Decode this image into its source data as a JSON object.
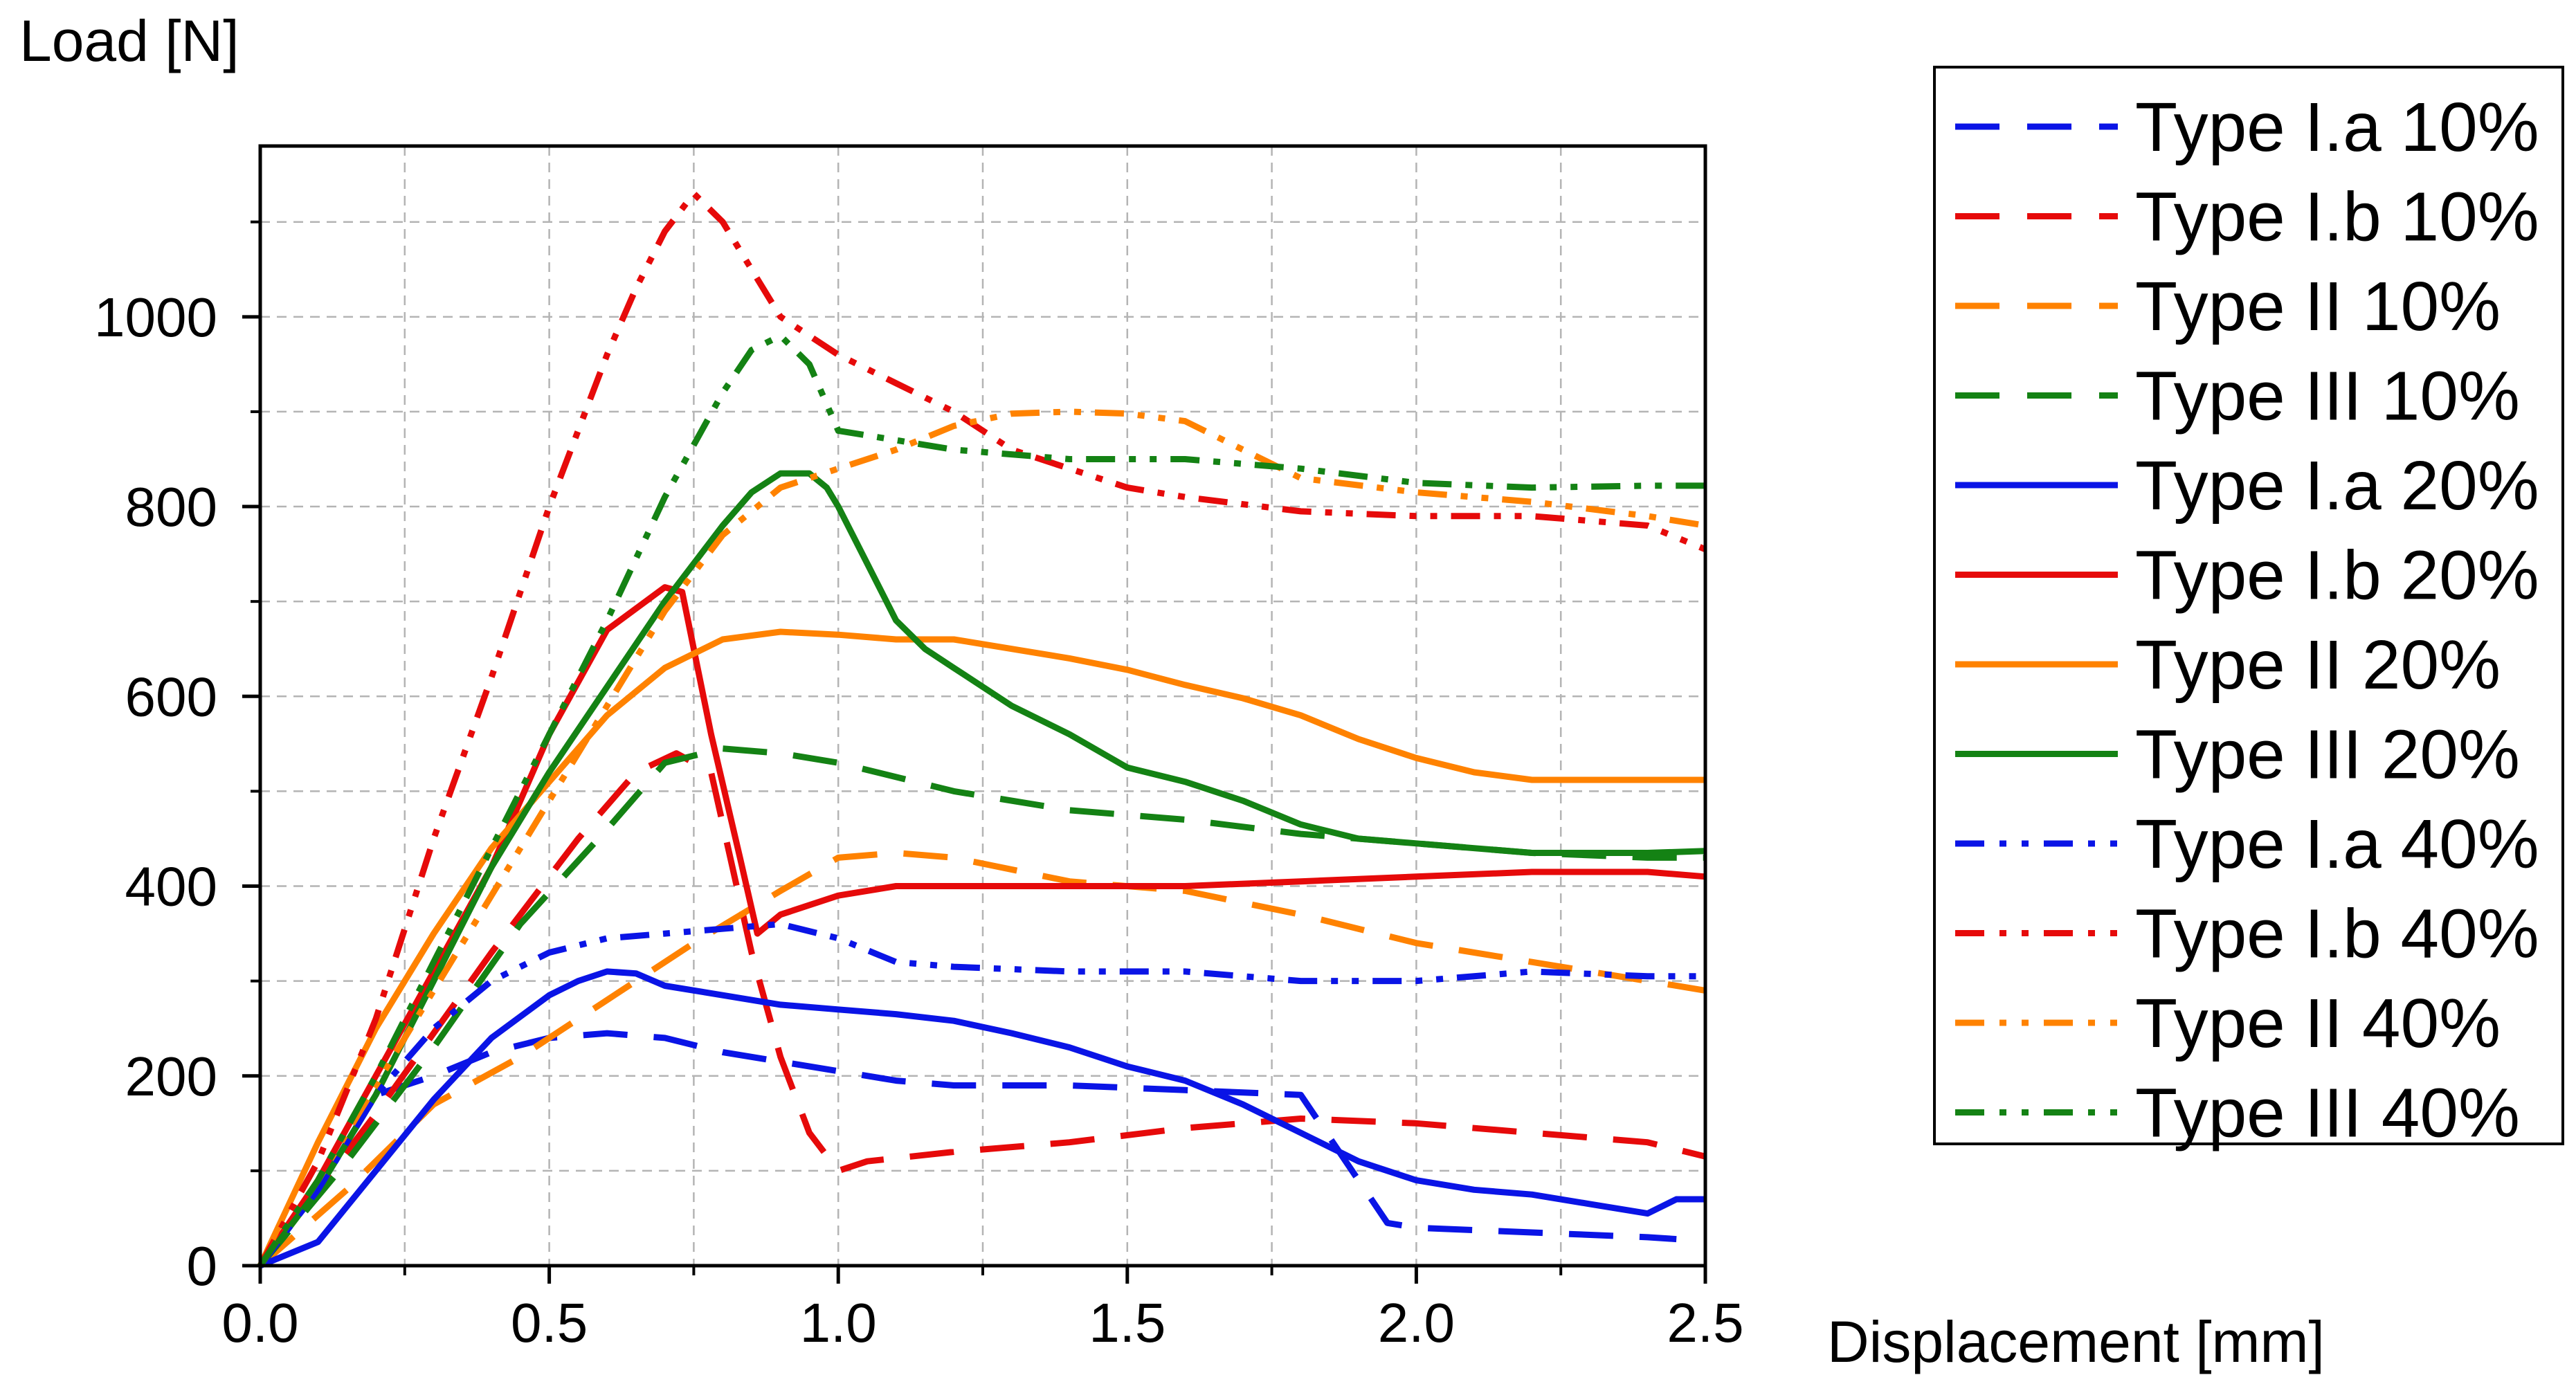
{
  "chart_data": {
    "type": "line",
    "title": "",
    "xlabel": "Displacement [mm]",
    "ylabel": "Load [N]",
    "xlim": [
      0,
      2.5
    ],
    "ylim": [
      0,
      1180
    ],
    "x_ticks": [
      0.0,
      0.5,
      1.0,
      1.5,
      2.0,
      2.5
    ],
    "x_tick_labels": [
      "0.0",
      "0.5",
      "1.0",
      "1.5",
      "2.0",
      "2.5"
    ],
    "y_ticks": [
      0,
      200,
      400,
      600,
      800,
      1000
    ],
    "y_tick_labels": [
      "0",
      "200",
      "400",
      "600",
      "800",
      "1000"
    ],
    "grid": true,
    "legend_position": "right",
    "colors": {
      "blue": "#0a14e6",
      "red": "#e60a0a",
      "orange": "#ff8200",
      "green": "#148214"
    },
    "series": [
      {
        "name": "Type I.a 10%",
        "color": "#0a14e6",
        "style": "dash",
        "x": [
          0,
          0.1,
          0.2,
          0.3,
          0.4,
          0.5,
          0.6,
          0.7,
          0.8,
          0.9,
          1.0,
          1.1,
          1.2,
          1.4,
          1.6,
          1.8,
          1.95,
          2.0,
          2.2,
          2.4,
          2.45
        ],
        "y": [
          0,
          80,
          180,
          200,
          225,
          240,
          245,
          240,
          225,
          215,
          205,
          195,
          190,
          190,
          185,
          180,
          45,
          40,
          35,
          30,
          28
        ]
      },
      {
        "name": "Type I.b 10%",
        "color": "#e60a0a",
        "style": "dash",
        "x": [
          0,
          0.2,
          0.4,
          0.55,
          0.65,
          0.72,
          0.78,
          0.85,
          0.9,
          0.95,
          1.0,
          1.05,
          1.2,
          1.4,
          1.6,
          1.8,
          2.0,
          2.2,
          2.4,
          2.5
        ],
        "y": [
          0,
          160,
          330,
          450,
          520,
          540,
          520,
          330,
          220,
          140,
          100,
          110,
          120,
          130,
          145,
          155,
          150,
          140,
          130,
          115
        ]
      },
      {
        "name": "Type II 10%",
        "color": "#ff8200",
        "style": "dash",
        "x": [
          0,
          0.15,
          0.3,
          0.45,
          0.6,
          0.75,
          0.9,
          1.0,
          1.1,
          1.2,
          1.4,
          1.6,
          1.8,
          2.0,
          2.2,
          2.4,
          2.5
        ],
        "y": [
          0,
          80,
          170,
          220,
          280,
          340,
          395,
          430,
          435,
          430,
          405,
          395,
          370,
          340,
          320,
          300,
          290
        ]
      },
      {
        "name": "Type III 10%",
        "color": "#148214",
        "style": "dash",
        "x": [
          0,
          0.15,
          0.3,
          0.45,
          0.6,
          0.7,
          0.8,
          0.9,
          1.0,
          1.2,
          1.4,
          1.6,
          1.8,
          2.0,
          2.2,
          2.4,
          2.5
        ],
        "y": [
          0,
          110,
          230,
          360,
          460,
          530,
          545,
          540,
          530,
          500,
          480,
          470,
          455,
          445,
          435,
          430,
          430
        ]
      },
      {
        "name": "Type I.a 20%",
        "color": "#0a14e6",
        "style": "solid",
        "x": [
          0,
          0.1,
          0.2,
          0.3,
          0.4,
          0.5,
          0.55,
          0.6,
          0.65,
          0.7,
          0.8,
          0.9,
          1.0,
          1.1,
          1.2,
          1.3,
          1.4,
          1.5,
          1.6,
          1.7,
          1.8,
          1.9,
          2.0,
          2.1,
          2.2,
          2.3,
          2.4,
          2.45,
          2.5
        ],
        "y": [
          0,
          25,
          100,
          175,
          240,
          285,
          300,
          310,
          308,
          295,
          285,
          275,
          270,
          265,
          258,
          245,
          230,
          210,
          195,
          170,
          140,
          110,
          90,
          80,
          75,
          65,
          55,
          70,
          70
        ]
      },
      {
        "name": "Type I.b 20%",
        "color": "#e60a0a",
        "style": "solid",
        "x": [
          0,
          0.1,
          0.2,
          0.3,
          0.4,
          0.5,
          0.6,
          0.7,
          0.73,
          0.78,
          0.83,
          0.86,
          0.9,
          1.0,
          1.1,
          1.2,
          1.4,
          1.6,
          1.8,
          2.0,
          2.2,
          2.4,
          2.5
        ],
        "y": [
          0,
          90,
          200,
          310,
          420,
          560,
          670,
          715,
          710,
          560,
          430,
          350,
          370,
          390,
          400,
          400,
          400,
          400,
          405,
          410,
          415,
          415,
          410
        ]
      },
      {
        "name": "Type II 20%",
        "color": "#ff8200",
        "style": "solid",
        "x": [
          0,
          0.1,
          0.2,
          0.3,
          0.4,
          0.5,
          0.6,
          0.7,
          0.8,
          0.9,
          1.0,
          1.1,
          1.2,
          1.3,
          1.4,
          1.5,
          1.6,
          1.7,
          1.8,
          1.9,
          2.0,
          2.1,
          2.2,
          2.3,
          2.4,
          2.5
        ],
        "y": [
          0,
          130,
          250,
          350,
          440,
          510,
          580,
          630,
          660,
          668,
          665,
          660,
          660,
          650,
          640,
          628,
          612,
          598,
          580,
          555,
          535,
          520,
          512,
          512,
          512,
          512
        ]
      },
      {
        "name": "Type III 20%",
        "color": "#148214",
        "style": "solid",
        "x": [
          0,
          0.1,
          0.2,
          0.3,
          0.4,
          0.5,
          0.6,
          0.7,
          0.8,
          0.85,
          0.9,
          0.95,
          0.98,
          1.0,
          1.05,
          1.1,
          1.15,
          1.2,
          1.3,
          1.4,
          1.5,
          1.6,
          1.7,
          1.8,
          1.9,
          2.0,
          2.1,
          2.2,
          2.3,
          2.4,
          2.5
        ],
        "y": [
          0,
          80,
          180,
          300,
          420,
          520,
          610,
          700,
          780,
          815,
          835,
          835,
          820,
          800,
          740,
          680,
          650,
          630,
          590,
          560,
          525,
          510,
          490,
          465,
          450,
          445,
          440,
          435,
          435,
          435,
          437
        ]
      },
      {
        "name": "Type I.a 40%",
        "color": "#0a14e6",
        "style": "dashdotdot",
        "x": [
          0,
          0.1,
          0.2,
          0.3,
          0.4,
          0.5,
          0.6,
          0.7,
          0.8,
          0.9,
          1.0,
          1.1,
          1.2,
          1.4,
          1.6,
          1.8,
          2.0,
          2.2,
          2.4,
          2.5
        ],
        "y": [
          0,
          80,
          180,
          250,
          300,
          330,
          345,
          350,
          355,
          360,
          345,
          320,
          315,
          310,
          310,
          300,
          300,
          310,
          305,
          305
        ]
      },
      {
        "name": "Type I.b 40%",
        "color": "#e60a0a",
        "style": "dashdotdot",
        "x": [
          0,
          0.1,
          0.2,
          0.3,
          0.4,
          0.5,
          0.6,
          0.65,
          0.7,
          0.75,
          0.8,
          0.85,
          0.9,
          1.0,
          1.1,
          1.2,
          1.3,
          1.4,
          1.5,
          1.6,
          1.8,
          2.0,
          2.2,
          2.4,
          2.5
        ],
        "y": [
          0,
          110,
          260,
          450,
          620,
          800,
          960,
          1030,
          1090,
          1130,
          1100,
          1050,
          1000,
          960,
          930,
          900,
          860,
          840,
          820,
          810,
          795,
          790,
          790,
          780,
          755
        ]
      },
      {
        "name": "Type II 40%",
        "color": "#ff8200",
        "style": "dashdotdot",
        "x": [
          0,
          0.1,
          0.2,
          0.3,
          0.4,
          0.5,
          0.6,
          0.7,
          0.8,
          0.9,
          1.0,
          1.1,
          1.2,
          1.3,
          1.4,
          1.5,
          1.6,
          1.7,
          1.8,
          2.0,
          2.2,
          2.4,
          2.5
        ],
        "y": [
          0,
          90,
          190,
          290,
          390,
          490,
          590,
          690,
          770,
          820,
          840,
          860,
          885,
          898,
          900,
          898,
          890,
          860,
          830,
          815,
          805,
          790,
          780
        ]
      },
      {
        "name": "Type III 40%",
        "color": "#148214",
        "style": "dashdotdot",
        "x": [
          0,
          0.1,
          0.2,
          0.3,
          0.4,
          0.5,
          0.6,
          0.7,
          0.8,
          0.85,
          0.9,
          0.95,
          1.0,
          1.1,
          1.2,
          1.4,
          1.6,
          1.8,
          2.0,
          2.2,
          2.4,
          2.5
        ],
        "y": [
          0,
          90,
          200,
          320,
          440,
          560,
          680,
          810,
          920,
          965,
          980,
          950,
          880,
          870,
          860,
          850,
          850,
          840,
          825,
          820,
          822,
          822
        ]
      }
    ]
  }
}
